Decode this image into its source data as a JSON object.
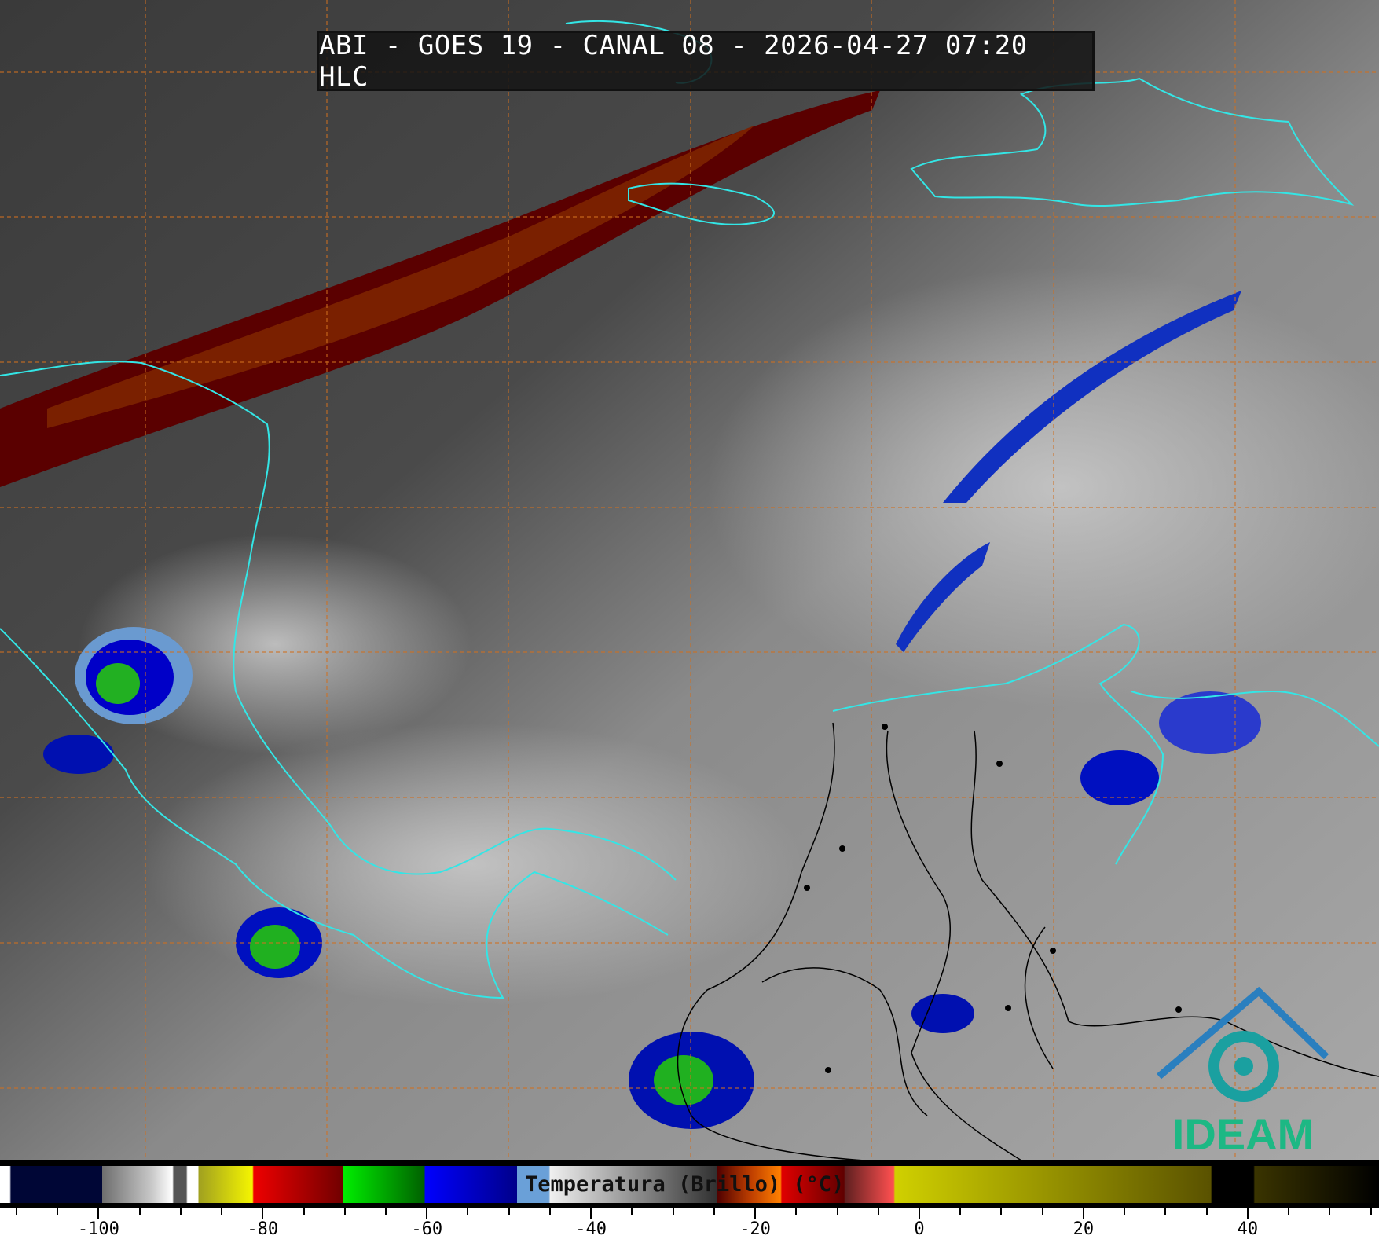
{
  "title": "ABI - GOES 19 - CANAL 08 - 2026-04-27 07:20 HLC",
  "colorbar": {
    "label": "Temperatura (Brillo) (°C)",
    "range_celsius": [
      -112,
      56
    ],
    "tick_labels": [
      "-100",
      "-80",
      "-60",
      "-40",
      "-20",
      "0",
      "20",
      "40"
    ],
    "tick_values": [
      -100,
      -80,
      -60,
      -40,
      -20,
      0,
      20,
      40
    ]
  },
  "logo": {
    "text": "IDEAM",
    "color": "#1db884"
  },
  "colors": {
    "coastline": "#33e6e6",
    "grid": "#d07020",
    "borders": "#000000"
  }
}
